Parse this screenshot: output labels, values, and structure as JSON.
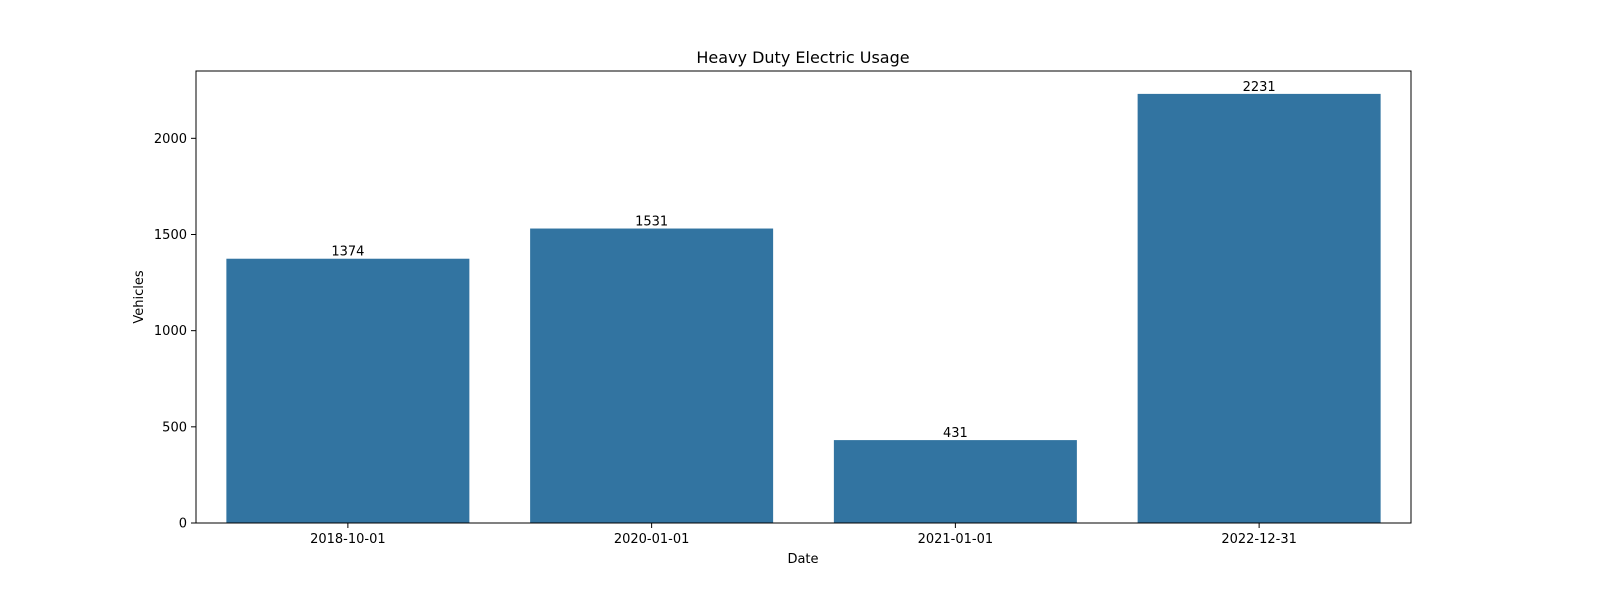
{
  "chart_data": {
    "type": "bar",
    "title": "Heavy Duty Electric Usage",
    "xlabel": "Date",
    "ylabel": "Vehicles",
    "categories": [
      "2018-10-01",
      "2020-01-01",
      "2021-01-01",
      "2022-12-31"
    ],
    "values": [
      1374,
      1531,
      431,
      2231
    ],
    "data_labels": [
      "1374",
      "1531",
      "431",
      "2231"
    ],
    "ylim": [
      0,
      2350
    ],
    "yticks": [
      0,
      500,
      1000,
      1500,
      2000
    ],
    "ytick_labels": [
      "0",
      "500",
      "1000",
      "1500",
      "2000"
    ],
    "bar_color": "#3274a1",
    "grid": false,
    "legend": "none"
  }
}
